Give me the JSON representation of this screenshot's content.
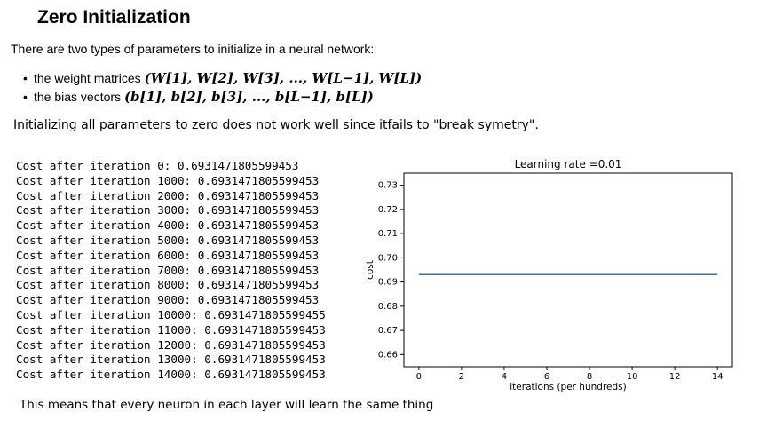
{
  "page": {
    "title": "Zero Initialization",
    "intro": "There are two types of parameters to initialize in a neural network:",
    "bullets": [
      {
        "text": "the weight matrices",
        "math": "(W[1], W[2], W[3], ..., W[L−1], W[L])"
      },
      {
        "text": "the bias vectors",
        "math": "(b[1], b[2], b[3], ..., b[L−1], b[L])"
      }
    ],
    "break_note": "Initializing all parameters to zero does not work well since itfails to \"break symetry\".",
    "conclusion": "This means that every neuron in each layer will learn the same thing"
  },
  "log_lines": [
    "Cost after iteration 0: 0.6931471805599453",
    "Cost after iteration 1000: 0.6931471805599453",
    "Cost after iteration 2000: 0.6931471805599453",
    "Cost after iteration 3000: 0.6931471805599453",
    "Cost after iteration 4000: 0.6931471805599453",
    "Cost after iteration 5000: 0.6931471805599453",
    "Cost after iteration 6000: 0.6931471805599453",
    "Cost after iteration 7000: 0.6931471805599453",
    "Cost after iteration 8000: 0.6931471805599453",
    "Cost after iteration 9000: 0.6931471805599453",
    "Cost after iteration 10000: 0.6931471805599455",
    "Cost after iteration 11000: 0.6931471805599453",
    "Cost after iteration 12000: 0.6931471805599453",
    "Cost after iteration 13000: 0.6931471805599453",
    "Cost after iteration 14000: 0.6931471805599453"
  ],
  "chart_data": {
    "type": "line",
    "title": "Learning rate =0.01",
    "xlabel": "iterations (per hundreds)",
    "ylabel": "cost",
    "xlim": [
      -0.7,
      14.7
    ],
    "ylim": [
      0.655,
      0.735
    ],
    "xticks": [
      0,
      2,
      4,
      6,
      8,
      10,
      12,
      14
    ],
    "yticks": [
      0.66,
      0.67,
      0.68,
      0.69,
      0.7,
      0.71,
      0.72,
      0.73
    ],
    "ytick_labels": [
      "0.66",
      "0.67",
      "0.68",
      "0.69",
      "0.70",
      "0.71",
      "0.72",
      "0.73"
    ],
    "grid": false,
    "line_color": "#1f77b4",
    "series": [
      {
        "x": [
          0,
          1,
          2,
          3,
          4,
          5,
          6,
          7,
          8,
          9,
          10,
          11,
          12,
          13,
          14
        ],
        "values": [
          0.6931,
          0.6931,
          0.6931,
          0.6931,
          0.6931,
          0.6931,
          0.6931,
          0.6931,
          0.6931,
          0.6931,
          0.6931,
          0.6931,
          0.6931,
          0.6931,
          0.6931
        ]
      }
    ]
  }
}
